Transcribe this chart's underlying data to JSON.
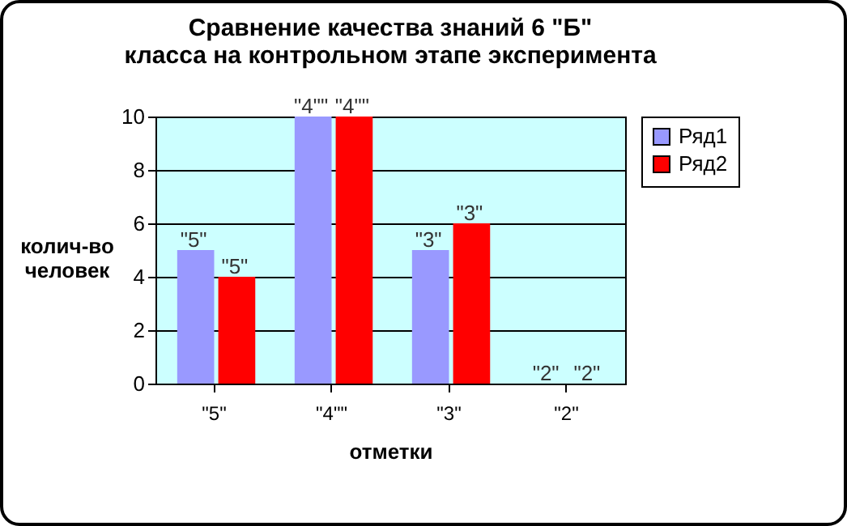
{
  "chart_data": {
    "type": "bar",
    "title": "Сравнение качества знаний 6 \"Б\" класса на контрольном этапе эксперимента",
    "xlabel": "отметки",
    "ylabel": "колич-во человек",
    "categories": [
      "\"5\"",
      "\"4\"\"",
      "\"3\"",
      "\"2\""
    ],
    "series": [
      {
        "name": "Ряд1",
        "color": "#9999ff",
        "values": [
          5,
          10,
          5,
          0
        ]
      },
      {
        "name": "Ряд2",
        "color": "#ff0000",
        "values": [
          4,
          10,
          6,
          0
        ]
      }
    ],
    "annotations": [
      {
        "text": "\"5\"",
        "x": "\"5\"",
        "y": 5
      },
      {
        "text": "\"5\"",
        "x": "\"5\"",
        "y": 4
      },
      {
        "text": "\"4\"\"",
        "x": "\"4\"\"",
        "y": 10
      },
      {
        "text": "\"4\"\"",
        "x": "\"4\"\"",
        "y": 10
      },
      {
        "text": "\"3\"",
        "x": "\"3\"",
        "y": 5
      },
      {
        "text": "\"3\"",
        "x": "\"3\"",
        "y": 6
      },
      {
        "text": "\"2\"",
        "x": "\"2\"",
        "y": 0
      },
      {
        "text": "\"2\"",
        "x": "\"2\"",
        "y": 0
      }
    ],
    "ylim": [
      0,
      10
    ],
    "yticks": [
      0,
      2,
      4,
      6,
      8,
      10
    ],
    "grid": "y",
    "legend": "right"
  }
}
